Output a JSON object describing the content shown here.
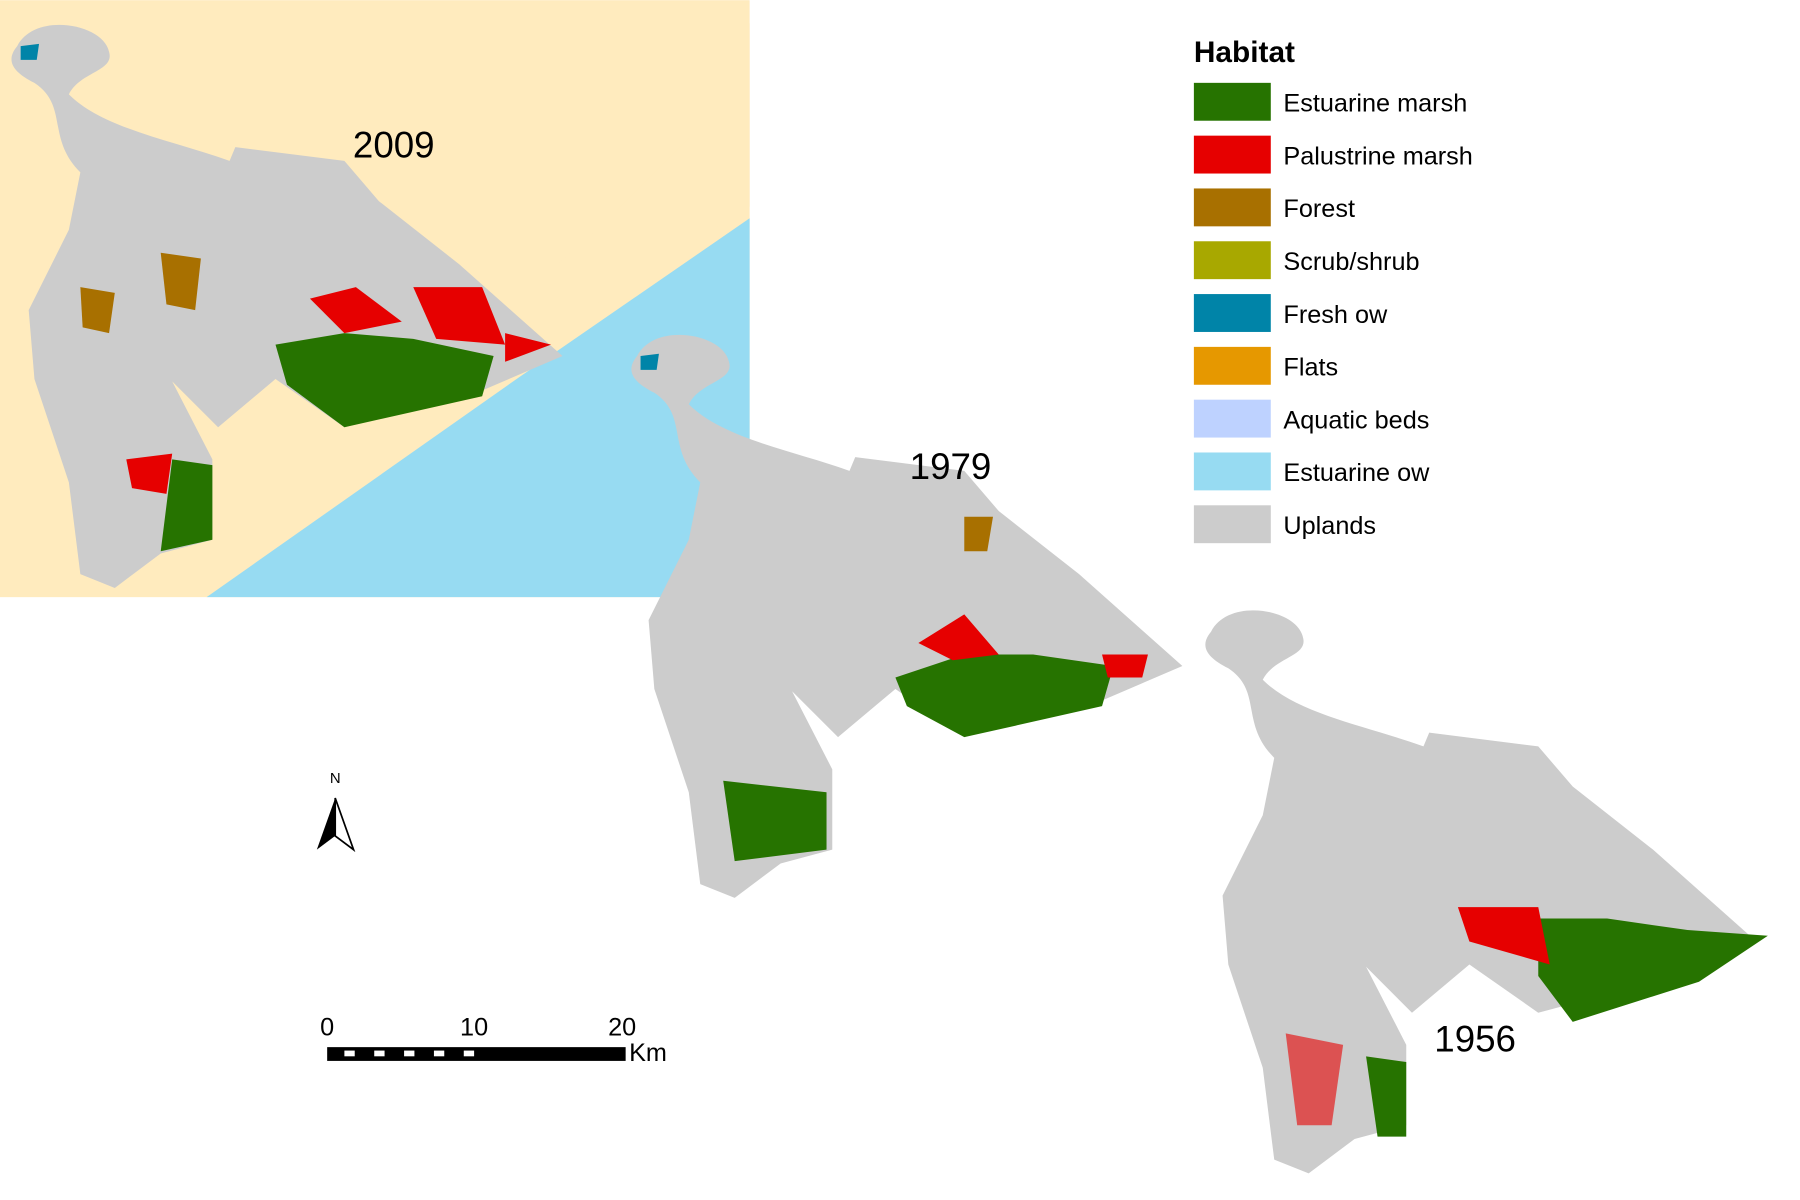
{
  "legend": {
    "title": "Habitat",
    "items": [
      {
        "label": "Estuarine marsh",
        "color": "#267300"
      },
      {
        "label": "Palustrine marsh",
        "color": "#e60000"
      },
      {
        "label": "Forest",
        "color": "#a87000"
      },
      {
        "label": "Scrub/shrub",
        "color": "#a8a800"
      },
      {
        "label": "Fresh ow",
        "color": "#0084a8"
      },
      {
        "label": "Flats",
        "color": "#e69800"
      },
      {
        "label": "Aquatic beds",
        "color": "#bed2ff"
      },
      {
        "label": "Estuarine ow",
        "color": "#97dbf2"
      },
      {
        "label": "Uplands",
        "color": "#cccccc"
      }
    ]
  },
  "maps": [
    {
      "year": "2009"
    },
    {
      "year": "1979"
    },
    {
      "year": "1956"
    }
  ],
  "north_arrow": {
    "label": "N"
  },
  "scale_bar": {
    "labels": [
      "0",
      "10",
      "20"
    ],
    "unit": "Km"
  }
}
